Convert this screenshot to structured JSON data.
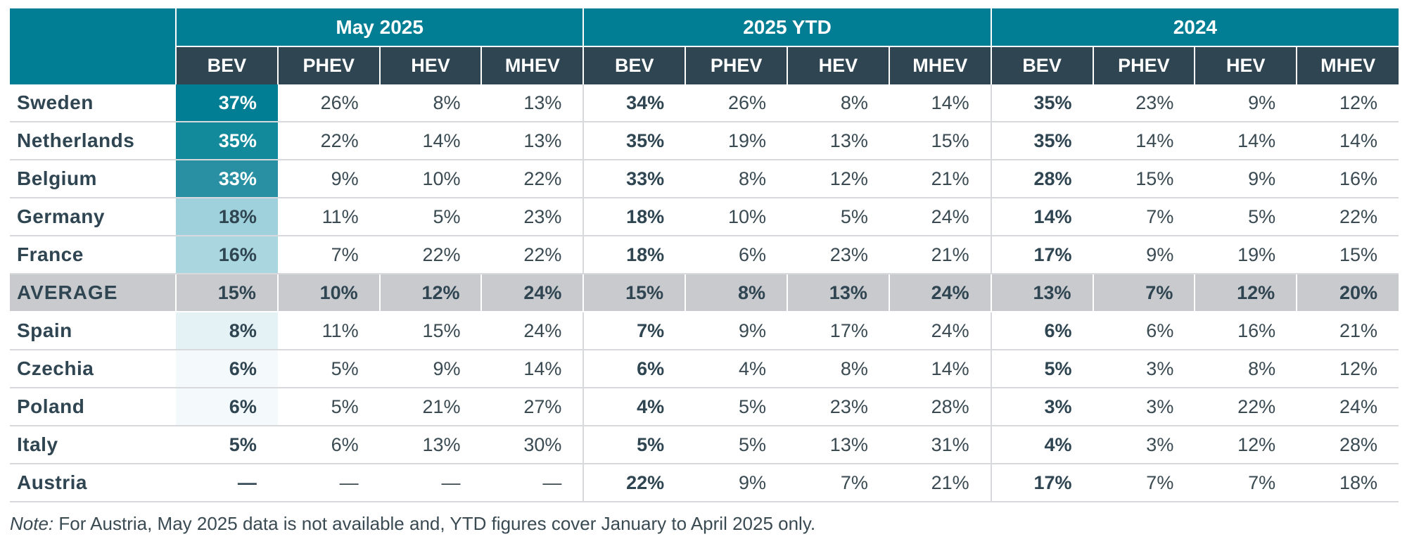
{
  "chart_data": {
    "type": "table",
    "groups": [
      "May 2025",
      "2025 YTD",
      "2024"
    ],
    "subcolumns": [
      "BEV",
      "PHEV",
      "HEV",
      "MHEV"
    ],
    "rows": [
      {
        "country": "Sweden",
        "values": [
          "37%",
          "26%",
          "8%",
          "13%",
          "34%",
          "26%",
          "8%",
          "14%",
          "35%",
          "23%",
          "9%",
          "12%"
        ],
        "bev_may": 37,
        "heat_color": "#017e93",
        "text_color": "#ffffff"
      },
      {
        "country": "Netherlands",
        "values": [
          "35%",
          "22%",
          "14%",
          "13%",
          "35%",
          "19%",
          "13%",
          "15%",
          "35%",
          "14%",
          "14%",
          "14%"
        ],
        "bev_may": 35,
        "heat_color": "#13899c",
        "text_color": "#ffffff"
      },
      {
        "country": "Belgium",
        "values": [
          "33%",
          "9%",
          "10%",
          "22%",
          "33%",
          "8%",
          "12%",
          "21%",
          "28%",
          "15%",
          "9%",
          "16%"
        ],
        "bev_may": 33,
        "heat_color": "#2890a2",
        "text_color": "#ffffff"
      },
      {
        "country": "Germany",
        "values": [
          "18%",
          "11%",
          "5%",
          "23%",
          "18%",
          "10%",
          "5%",
          "24%",
          "14%",
          "7%",
          "5%",
          "22%"
        ],
        "bev_may": 18,
        "heat_color": "#9fd1dc",
        "text_color": "#2f4551"
      },
      {
        "country": "France",
        "values": [
          "16%",
          "7%",
          "22%",
          "22%",
          "18%",
          "6%",
          "23%",
          "21%",
          "17%",
          "9%",
          "19%",
          "15%"
        ],
        "bev_may": 16,
        "heat_color": "#a9d6df",
        "text_color": "#2f4551"
      },
      {
        "country": "AVERAGE",
        "values": [
          "15%",
          "10%",
          "12%",
          "24%",
          "15%",
          "8%",
          "13%",
          "24%",
          "13%",
          "7%",
          "12%",
          "20%"
        ],
        "bev_may": 15,
        "is_average": true
      },
      {
        "country": "Spain",
        "values": [
          "8%",
          "11%",
          "15%",
          "24%",
          "7%",
          "9%",
          "17%",
          "24%",
          "6%",
          "6%",
          "16%",
          "21%"
        ],
        "bev_may": 8,
        "heat_color": "#e4f2f5",
        "text_color": "#2f4551"
      },
      {
        "country": "Czechia",
        "values": [
          "6%",
          "5%",
          "9%",
          "14%",
          "6%",
          "4%",
          "8%",
          "14%",
          "5%",
          "3%",
          "8%",
          "12%"
        ],
        "bev_may": 6,
        "heat_color": "#f4f9fb",
        "text_color": "#2f4551"
      },
      {
        "country": "Poland",
        "values": [
          "6%",
          "5%",
          "21%",
          "27%",
          "4%",
          "5%",
          "23%",
          "28%",
          "3%",
          "3%",
          "22%",
          "24%"
        ],
        "bev_may": 6,
        "heat_color": "#f4f9fb",
        "text_color": "#2f4551"
      },
      {
        "country": "Italy",
        "values": [
          "5%",
          "6%",
          "13%",
          "30%",
          "5%",
          "5%",
          "13%",
          "31%",
          "4%",
          "3%",
          "12%",
          "28%"
        ],
        "bev_may": 5,
        "heat_color": "#ffffff",
        "text_color": "#2f4551"
      },
      {
        "country": "Austria",
        "values": [
          "—",
          "—",
          "—",
          "—",
          "22%",
          "9%",
          "7%",
          "21%",
          "17%",
          "7%",
          "7%",
          "18%"
        ],
        "bev_may": null,
        "heat_color": "#ffffff",
        "text_color": "#2f4551"
      }
    ]
  },
  "note": {
    "prefix": "Note:",
    "text": " For Austria, May 2025 data is not available and, YTD figures cover January to April 2025 only."
  }
}
